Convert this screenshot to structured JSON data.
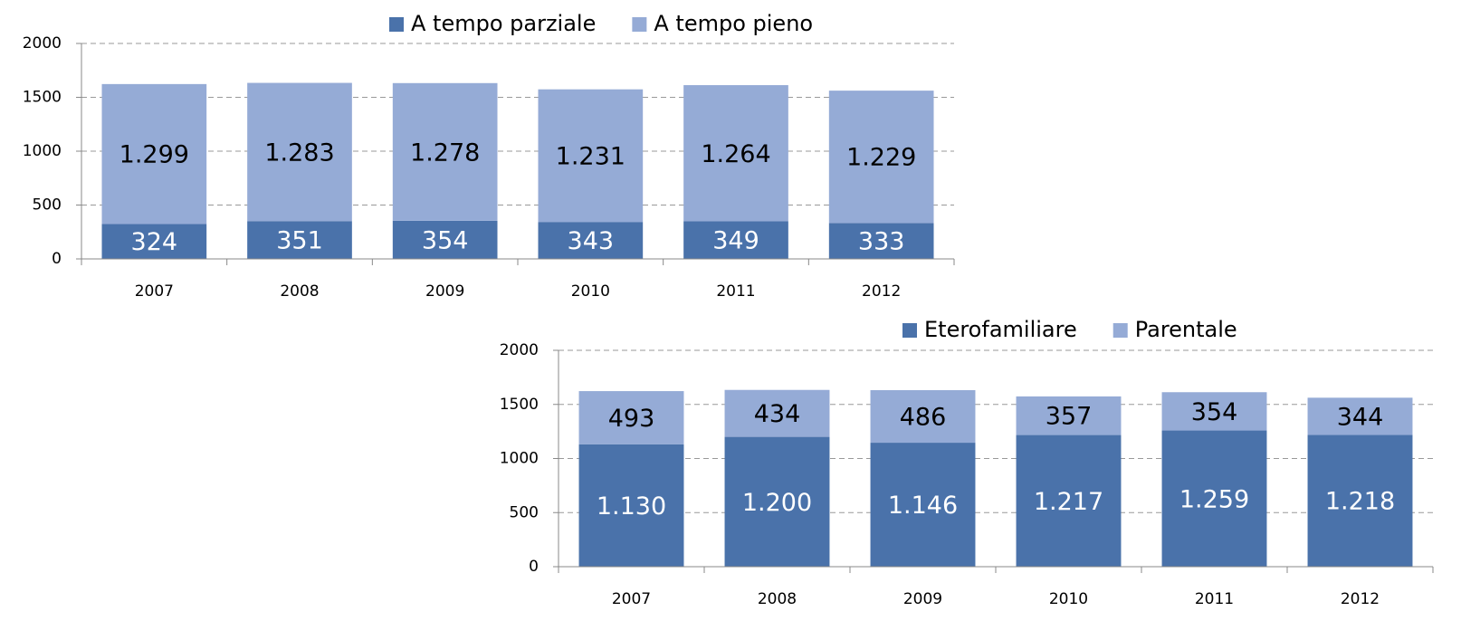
{
  "chart_data": [
    {
      "type": "bar",
      "stacked": true,
      "legend": "top",
      "grid": true,
      "categories": [
        "2007",
        "2008",
        "2009",
        "2010",
        "2011",
        "2012"
      ],
      "ylim": [
        0,
        2000
      ],
      "yticks": [
        0,
        500,
        1000,
        1500,
        2000
      ],
      "series": [
        {
          "name": "A tempo parziale",
          "color": "#4a72aa",
          "values": [
            324,
            351,
            354,
            343,
            349,
            333
          ]
        },
        {
          "name": "A tempo pieno",
          "color": "#95abd6",
          "values": [
            1299,
            1283,
            1278,
            1231,
            1264,
            1229
          ],
          "value_labels": [
            "1.299",
            "1.283",
            "1.278",
            "1.231",
            "1.264",
            "1.229"
          ]
        }
      ]
    },
    {
      "type": "bar",
      "stacked": true,
      "legend": "top",
      "grid": true,
      "categories": [
        "2007",
        "2008",
        "2009",
        "2010",
        "2011",
        "2012"
      ],
      "ylim": [
        0,
        2000
      ],
      "yticks": [
        0,
        500,
        1000,
        1500,
        2000
      ],
      "series": [
        {
          "name": "Eterofamiliare",
          "color": "#4a72aa",
          "values": [
            1130,
            1200,
            1146,
            1217,
            1259,
            1218
          ],
          "value_labels": [
            "1.130",
            "1.200",
            "1.146",
            "1.217",
            "1.259",
            "1.218"
          ]
        },
        {
          "name": "Parentale",
          "color": "#95abd6",
          "values": [
            493,
            434,
            486,
            357,
            354,
            344
          ]
        }
      ]
    }
  ]
}
